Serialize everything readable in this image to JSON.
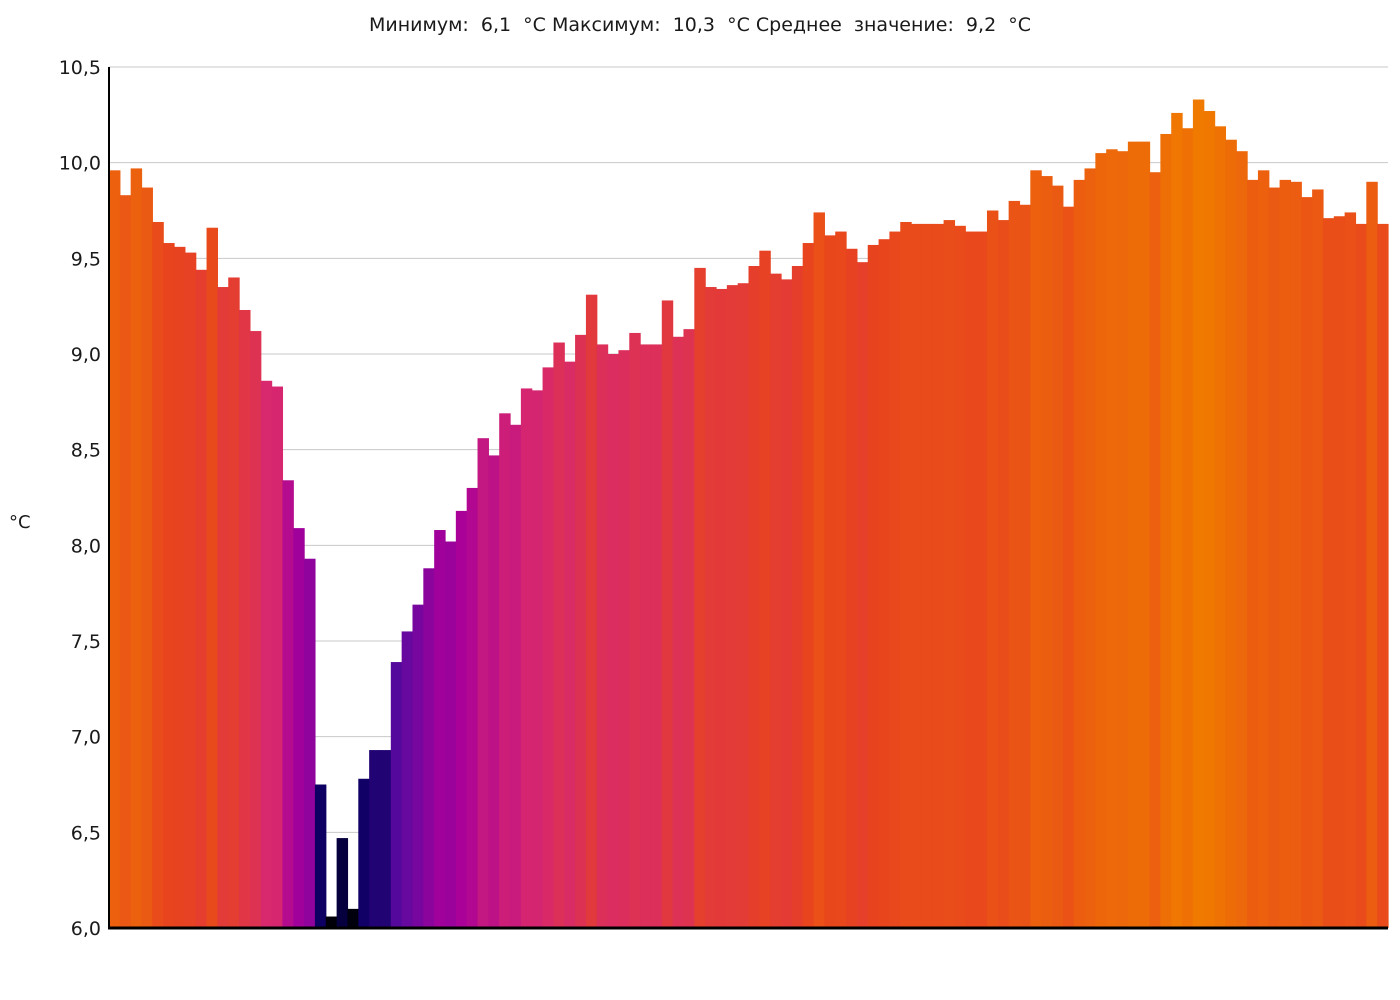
{
  "chart_data": {
    "type": "bar",
    "title": "Минимум:  6,1  °C Максимум:  10,3  °C Среднее  значение:  9,2  °C",
    "ylabel": "°C",
    "xlabel": "",
    "ylim": [
      6.0,
      10.5
    ],
    "yticks": [
      "6,0",
      "6,5",
      "7,0",
      "7,5",
      "8,0",
      "8,5",
      "9,0",
      "9,5",
      "10,0",
      "10,5"
    ],
    "grid": true,
    "color_scale": {
      "min": 6.0,
      "max": 10.3,
      "stops": [
        "#000000",
        "#0a0060",
        "#5a0aa0",
        "#a8009a",
        "#d8286e",
        "#e8441e",
        "#f07a00"
      ]
    },
    "values": [
      9.96,
      9.83,
      9.97,
      9.87,
      9.69,
      9.58,
      9.56,
      9.53,
      9.44,
      9.66,
      9.35,
      9.4,
      9.23,
      9.12,
      8.86,
      8.83,
      8.34,
      8.09,
      7.93,
      6.75,
      6.06,
      6.47,
      6.1,
      6.78,
      6.93,
      6.93,
      7.39,
      7.55,
      7.69,
      7.88,
      8.08,
      8.02,
      8.18,
      8.3,
      8.56,
      8.47,
      8.69,
      8.63,
      8.82,
      8.81,
      8.93,
      9.06,
      8.96,
      9.1,
      9.31,
      9.05,
      9.0,
      9.02,
      9.11,
      9.05,
      9.05,
      9.28,
      9.09,
      9.13,
      9.45,
      9.35,
      9.34,
      9.36,
      9.37,
      9.46,
      9.54,
      9.42,
      9.39,
      9.46,
      9.58,
      9.74,
      9.62,
      9.64,
      9.55,
      9.48,
      9.57,
      9.6,
      9.64,
      9.69,
      9.68,
      9.68,
      9.68,
      9.7,
      9.67,
      9.64,
      9.64,
      9.75,
      9.7,
      9.8,
      9.78,
      9.96,
      9.93,
      9.88,
      9.77,
      9.91,
      9.97,
      10.05,
      10.07,
      10.06,
      10.11,
      10.11,
      9.95,
      10.15,
      10.26,
      10.18,
      10.33,
      10.27,
      10.19,
      10.12,
      10.06,
      9.91,
      9.96,
      9.87,
      9.91,
      9.9,
      9.82,
      9.86,
      9.71,
      9.72,
      9.74,
      9.68,
      9.9,
      9.68
    ]
  }
}
